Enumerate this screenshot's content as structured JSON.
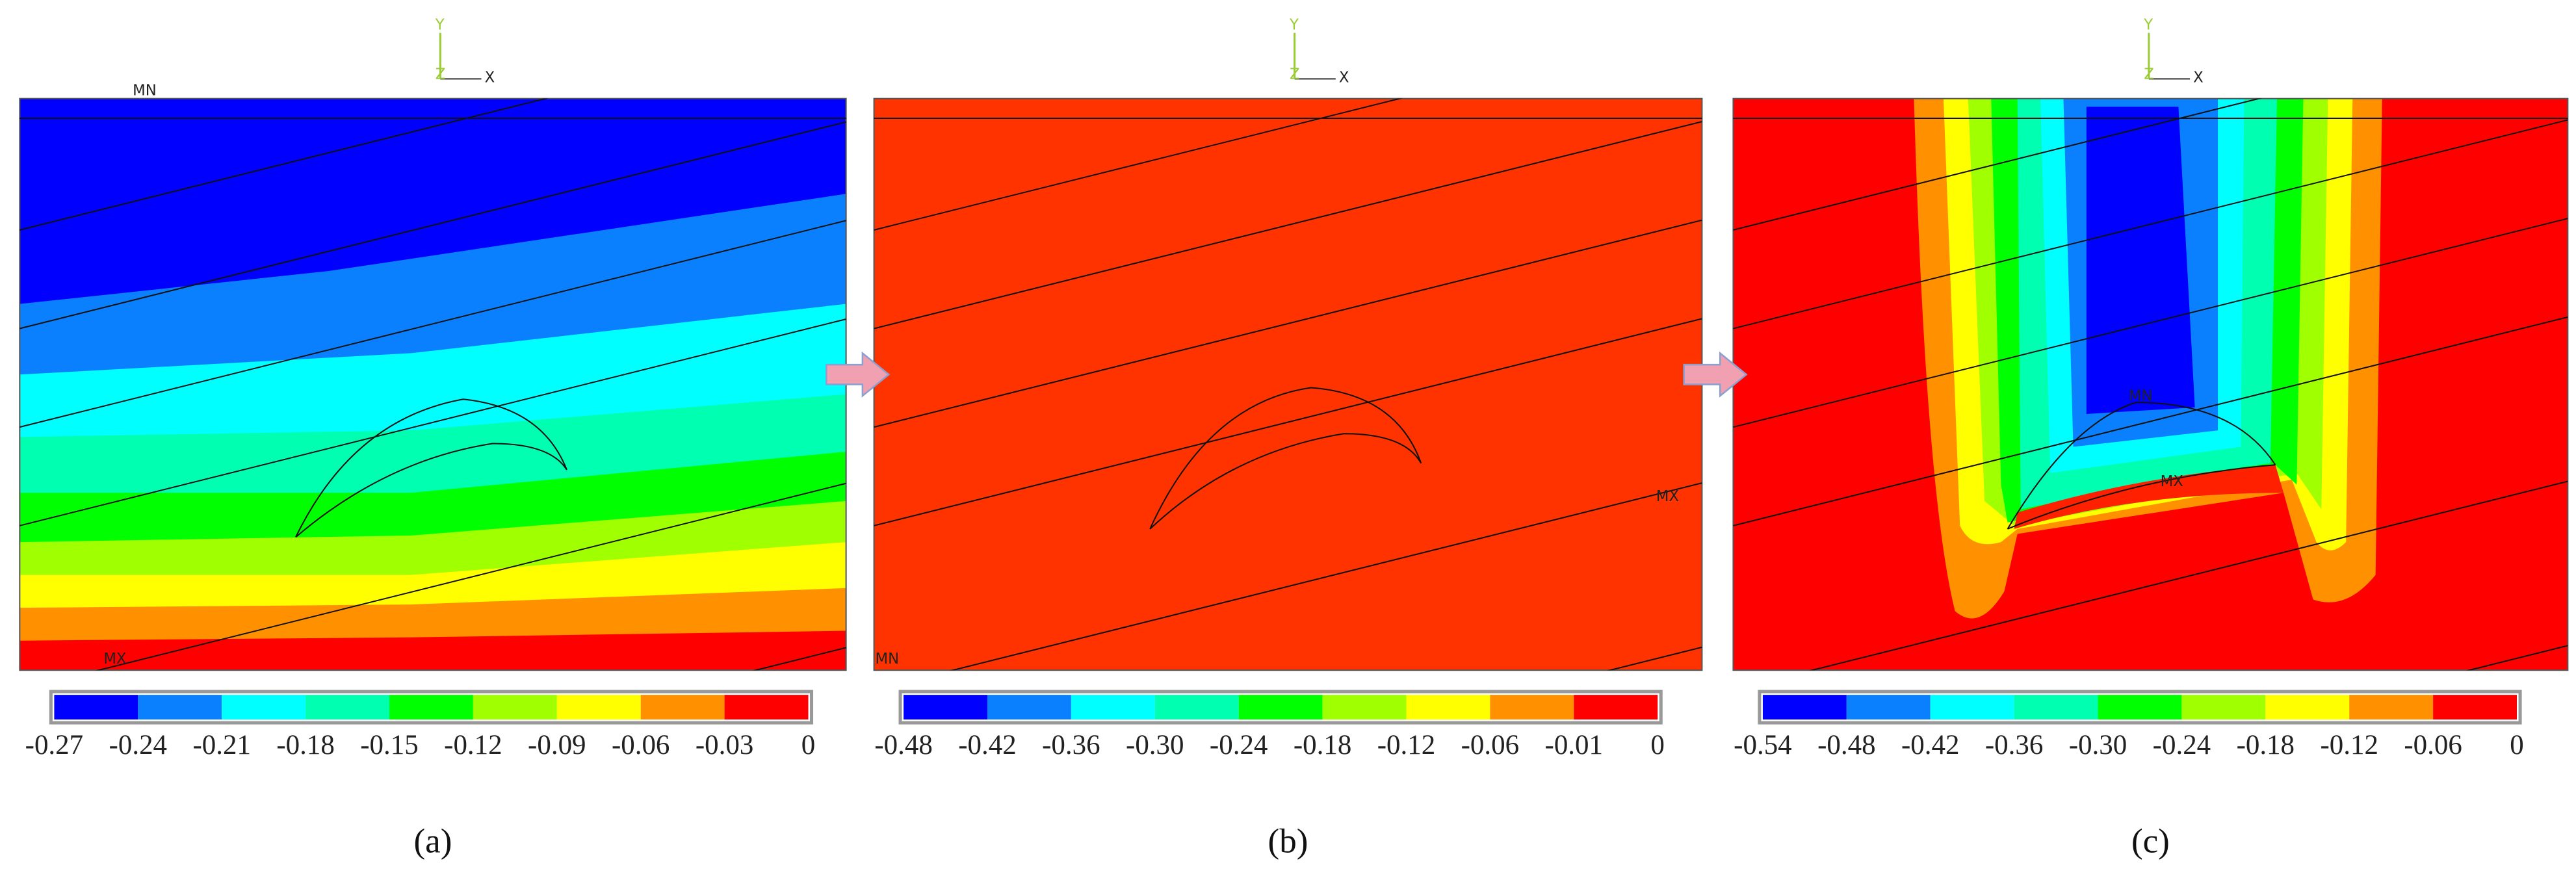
{
  "panels": [
    {
      "label": "(a)",
      "axis": {
        "y": "Y",
        "z": "Z",
        "x": "X"
      },
      "min_marker": "MN",
      "max_marker": "MX",
      "colorbar_ticks": [
        "-0.27",
        "-0.24",
        "-0.21",
        "-0.18",
        "-0.15",
        "-0.12",
        "-0.09",
        "-0.06",
        "-0.03",
        "0"
      ]
    },
    {
      "label": "(b)",
      "axis": {
        "y": "Y",
        "z": "Z",
        "x": "X"
      },
      "min_marker": "MN",
      "max_marker": "MX",
      "colorbar_ticks": [
        "-0.48",
        "-0.42",
        "-0.36",
        "-0.30",
        "-0.24",
        "-0.18",
        "-0.12",
        "-0.06",
        "-0.01",
        "0"
      ]
    },
    {
      "label": "(c)",
      "axis": {
        "y": "Y",
        "z": "Z",
        "x": "X"
      },
      "min_marker": "MN",
      "max_marker": "MX",
      "colorbar_ticks": [
        "-0.54",
        "-0.48",
        "-0.42",
        "-0.36",
        "-0.30",
        "-0.24",
        "-0.18",
        "-0.12",
        "-0.06",
        "0"
      ]
    }
  ]
}
